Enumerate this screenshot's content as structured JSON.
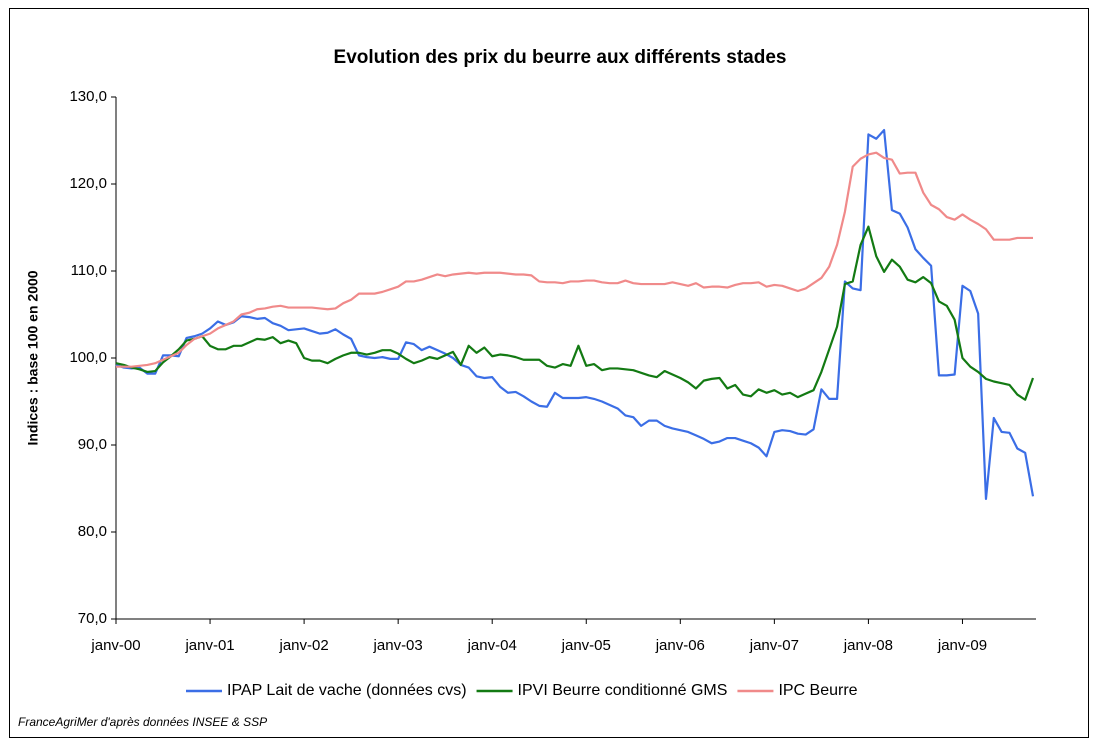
{
  "chart_data": {
    "type": "line",
    "title": "Evolution des prix du beurre aux différents stades",
    "y_label": "Indices : base 100 en 2000",
    "source": "FranceAgriMer d'après données INSEE & SSP",
    "categories": [
      "janv-00",
      null,
      null,
      null,
      null,
      null,
      null,
      null,
      null,
      null,
      null,
      null,
      "janv-01",
      null,
      null,
      null,
      null,
      null,
      null,
      null,
      null,
      null,
      null,
      null,
      "janv-02",
      null,
      null,
      null,
      null,
      null,
      null,
      null,
      null,
      null,
      null,
      null,
      "janv-03",
      null,
      null,
      null,
      null,
      null,
      null,
      null,
      null,
      null,
      null,
      null,
      "janv-04",
      null,
      null,
      null,
      null,
      null,
      null,
      null,
      null,
      null,
      null,
      null,
      "janv-05",
      null,
      null,
      null,
      null,
      null,
      null,
      null,
      null,
      null,
      null,
      null,
      "janv-06",
      null,
      null,
      null,
      null,
      null,
      null,
      null,
      null,
      null,
      null,
      null,
      "janv-07",
      null,
      null,
      null,
      null,
      null,
      null,
      null,
      null,
      null,
      null,
      null,
      "janv-08",
      null,
      null,
      null,
      null,
      null,
      null,
      null,
      null,
      null,
      null,
      null,
      "janv-09",
      null,
      null,
      null,
      null,
      null,
      null,
      null,
      null,
      null
    ],
    "ylim": [
      70,
      130
    ],
    "yticks": [
      {
        "value": 70,
        "label": "70,0"
      },
      {
        "value": 80,
        "label": "80,0"
      },
      {
        "value": 90,
        "label": "90,0"
      },
      {
        "value": 100,
        "label": "100,0"
      },
      {
        "value": 110,
        "label": "110,0"
      },
      {
        "value": 120,
        "label": "120,0"
      },
      {
        "value": 130,
        "label": "130,0"
      }
    ],
    "grid": false,
    "legend": "bottom",
    "series": [
      {
        "name": "IPAP Lait de vache (données cvs)",
        "color": "#3b6ee6",
        "values": [
          99.2,
          98.9,
          98.8,
          98.9,
          98.2,
          98.2,
          100.3,
          100.3,
          100.2,
          102.3,
          102.5,
          102.8,
          103.4,
          104.2,
          103.8,
          104.1,
          104.8,
          104.7,
          104.5,
          104.6,
          104.0,
          103.7,
          103.2,
          103.3,
          103.4,
          103.1,
          102.8,
          102.9,
          103.3,
          102.7,
          102.2,
          100.3,
          100.1,
          100.0,
          100.1,
          99.9,
          99.9,
          101.8,
          101.6,
          100.9,
          101.3,
          100.9,
          100.5,
          100.0,
          99.2,
          98.9,
          97.9,
          97.7,
          97.8,
          96.7,
          96.0,
          96.1,
          95.6,
          95.0,
          94.5,
          94.4,
          96.0,
          95.4,
          95.4,
          95.4,
          95.5,
          95.3,
          95.0,
          94.6,
          94.2,
          93.4,
          93.2,
          92.2,
          92.8,
          92.8,
          92.2,
          91.9,
          91.7,
          91.5,
          91.1,
          90.7,
          90.2,
          90.4,
          90.8,
          90.8,
          90.5,
          90.2,
          89.7,
          88.7,
          91.5,
          91.7,
          91.6,
          91.3,
          91.2,
          91.8,
          96.4,
          95.3,
          95.3,
          108.8,
          108.0,
          107.8,
          125.7,
          125.2,
          126.2,
          117.0,
          116.6,
          115.0,
          112.5,
          111.5,
          110.6,
          98.0,
          98.0,
          98.1,
          108.3,
          107.7,
          105.1,
          83.8,
          93.1,
          91.5,
          91.4,
          89.6,
          89.1,
          84.1
        ]
      },
      {
        "name": "IPVI Beurre conditionné GMS",
        "color": "#137a13",
        "values": [
          99.4,
          99.2,
          98.9,
          98.7,
          98.4,
          98.5,
          99.5,
          100.2,
          101.0,
          102.0,
          102.2,
          102.5,
          101.4,
          101.0,
          101.0,
          101.4,
          101.4,
          101.8,
          102.2,
          102.1,
          102.4,
          101.7,
          102.0,
          101.7,
          100.0,
          99.7,
          99.7,
          99.4,
          99.9,
          100.3,
          100.6,
          100.6,
          100.4,
          100.6,
          100.9,
          100.9,
          100.5,
          99.9,
          99.4,
          99.7,
          100.1,
          99.9,
          100.3,
          100.7,
          99.2,
          101.4,
          100.6,
          101.2,
          100.2,
          100.4,
          100.3,
          100.1,
          99.8,
          99.8,
          99.8,
          99.1,
          98.9,
          99.3,
          99.1,
          101.4,
          99.1,
          99.3,
          98.6,
          98.8,
          98.8,
          98.7,
          98.6,
          98.3,
          98.0,
          97.8,
          98.5,
          98.1,
          97.7,
          97.2,
          96.5,
          97.4,
          97.6,
          97.7,
          96.5,
          96.9,
          95.8,
          95.6,
          96.4,
          96.0,
          96.3,
          95.8,
          96.0,
          95.5,
          95.9,
          96.3,
          98.4,
          101.0,
          103.6,
          108.5,
          108.8,
          113.0,
          115.1,
          111.7,
          109.9,
          111.3,
          110.5,
          109.0,
          108.7,
          109.3,
          108.6,
          106.5,
          106.0,
          104.4,
          100.0,
          99.0,
          98.4,
          97.6,
          97.3,
          97.1,
          96.9,
          95.8,
          95.2,
          97.7
        ]
      },
      {
        "name": "IPC Beurre",
        "color": "#f08a8a",
        "values": [
          99.0,
          99.0,
          99.0,
          99.1,
          99.2,
          99.4,
          99.8,
          100.2,
          100.6,
          101.5,
          102.2,
          102.5,
          102.8,
          103.4,
          103.8,
          104.2,
          105.0,
          105.2,
          105.6,
          105.7,
          105.9,
          106.0,
          105.8,
          105.8,
          105.8,
          105.8,
          105.7,
          105.6,
          105.7,
          106.3,
          106.7,
          107.4,
          107.4,
          107.4,
          107.6,
          107.9,
          108.2,
          108.8,
          108.8,
          109.0,
          109.3,
          109.6,
          109.4,
          109.6,
          109.7,
          109.8,
          109.7,
          109.8,
          109.8,
          109.8,
          109.7,
          109.6,
          109.6,
          109.5,
          108.8,
          108.7,
          108.7,
          108.6,
          108.8,
          108.8,
          108.9,
          108.9,
          108.7,
          108.6,
          108.6,
          108.9,
          108.6,
          108.5,
          108.5,
          108.5,
          108.5,
          108.7,
          108.5,
          108.3,
          108.6,
          108.1,
          108.2,
          108.2,
          108.1,
          108.4,
          108.6,
          108.6,
          108.7,
          108.2,
          108.4,
          108.3,
          108.0,
          107.7,
          108.0,
          108.6,
          109.2,
          110.5,
          113.0,
          116.8,
          122.0,
          122.9,
          123.4,
          123.6,
          123.0,
          122.8,
          121.2,
          121.3,
          121.3,
          119.0,
          117.6,
          117.1,
          116.2,
          115.9,
          116.5,
          115.9,
          115.4,
          114.8,
          113.6,
          113.6,
          113.6,
          113.8,
          113.8,
          113.8
        ]
      }
    ]
  }
}
